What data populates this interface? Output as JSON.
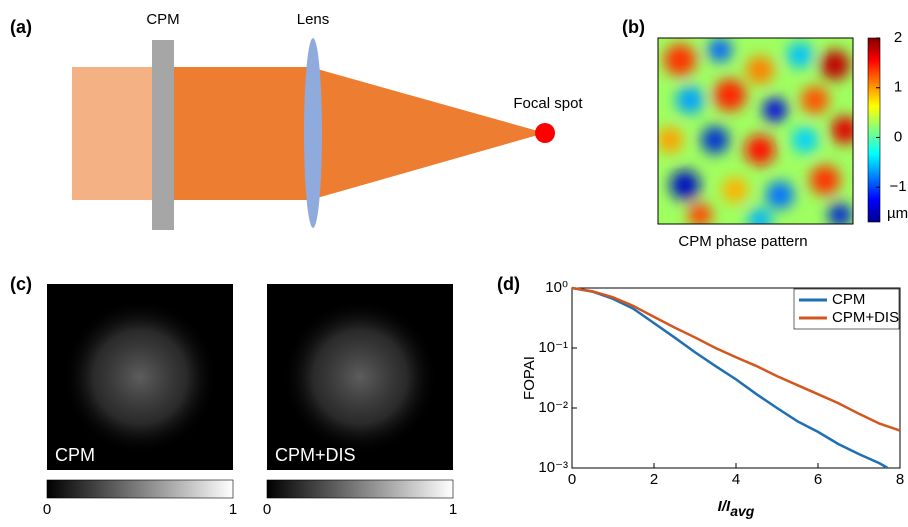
{
  "panels": {
    "a": {
      "label": "(a)",
      "cpm": "CPM",
      "lens": "Lens",
      "focal": "Focal spot"
    },
    "b": {
      "label": "(b)",
      "caption": "CPM phase pattern",
      "colorbar": {
        "lim": [
          -1.7,
          2
        ],
        "ticks": [
          2,
          1,
          0,
          {
            "value": -1,
            "label": "−1"
          }
        ],
        "unit": "µm"
      }
    },
    "c": {
      "label": "(c)",
      "images": [
        {
          "label": "CPM"
        },
        {
          "label": "CPM+DIS"
        }
      ],
      "colorbar": {
        "lim": [
          0,
          1
        ],
        "ticks": [
          0,
          1
        ]
      }
    },
    "d": {
      "label": "(d)"
    }
  },
  "chart_data": {
    "type": "line",
    "ylabel": "FOPAI",
    "xlabel": {
      "main": "I/I",
      "sub": "avg"
    },
    "log_y": true,
    "xlim": [
      0,
      8
    ],
    "xticks": [
      0,
      2,
      4,
      6,
      8
    ],
    "ylim": [
      0.001,
      1
    ],
    "yticks": [
      {
        "value": 1,
        "label": "10⁰"
      },
      {
        "value": 0.1,
        "label": "10⁻¹"
      },
      {
        "value": 0.01,
        "label": "10⁻²"
      },
      {
        "value": 0.001,
        "label": "10⁻³"
      }
    ],
    "legend": "upper right",
    "series": [
      {
        "name": "CPM",
        "color": "#1f6fb5",
        "x": [
          0,
          0.5,
          1,
          1.5,
          2,
          2.5,
          3,
          3.5,
          4,
          4.5,
          5,
          5.5,
          6,
          6.5,
          7,
          7.5,
          7.7
        ],
        "values": [
          1,
          0.87,
          0.66,
          0.45,
          0.26,
          0.15,
          0.085,
          0.05,
          0.03,
          0.017,
          0.01,
          0.006,
          0.004,
          0.0025,
          0.0017,
          0.0012,
          0.001
        ]
      },
      {
        "name": "CPM+DIS",
        "color": "#d4561f",
        "x": [
          0,
          0.5,
          1,
          1.5,
          2,
          2.5,
          3,
          3.5,
          4,
          4.5,
          5,
          5.5,
          6,
          6.5,
          7,
          7.5,
          8
        ],
        "values": [
          1,
          0.88,
          0.7,
          0.5,
          0.33,
          0.22,
          0.15,
          0.1,
          0.07,
          0.05,
          0.034,
          0.024,
          0.017,
          0.012,
          0.008,
          0.0055,
          0.0042
        ]
      }
    ]
  }
}
